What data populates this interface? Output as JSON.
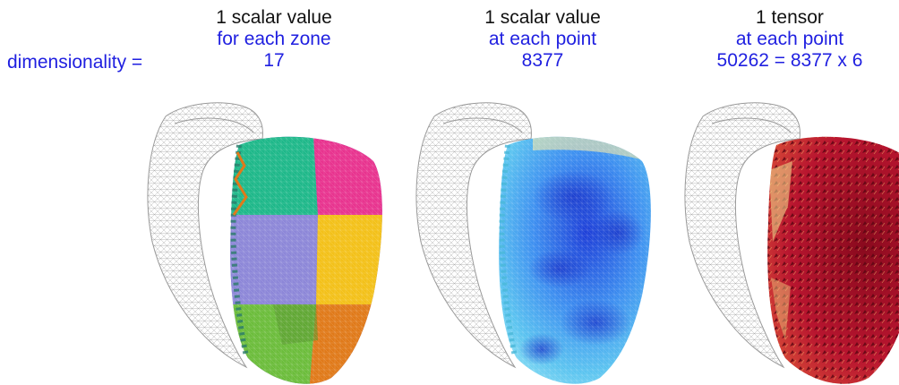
{
  "dimensionality_label": "dimensionality =",
  "columns": [
    {
      "line1": "1 scalar value",
      "line2": "for each zone",
      "line3": "17"
    },
    {
      "line1": "1 scalar value",
      "line2": "at each point",
      "line3": "8377"
    },
    {
      "line1": "1 tensor",
      "line2": "at each point",
      "line3": "50262 = 8377 x 6"
    }
  ],
  "colors": {
    "text_black": "#111111",
    "text_blue": "#1f1fe0",
    "zone_palette": [
      "#1fb88a",
      "#e8348f",
      "#8d87d8",
      "#f3c11a",
      "#6cbd3c",
      "#e07a1a"
    ],
    "field_gradient": [
      "#2a4fe0",
      "#3aa5f0",
      "#6fd3f2"
    ],
    "tensor_colors": [
      "#7a0a1a",
      "#c81e3a",
      "#e8623a"
    ]
  }
}
